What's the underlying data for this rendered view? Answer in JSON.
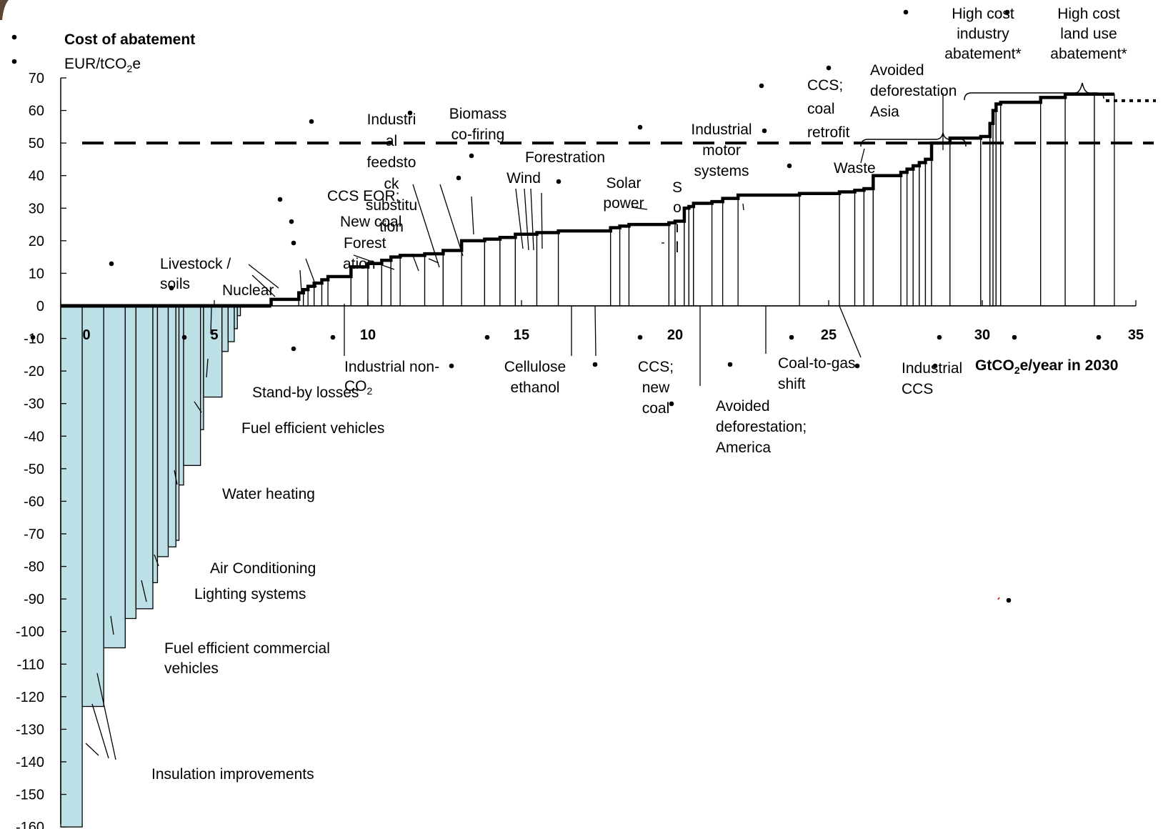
{
  "chart_data": {
    "type": "bar",
    "title": "Cost of abatement",
    "ylabel": "EUR/tCO2e",
    "ylabel_parts": {
      "main": "EUR/tCO",
      "sub": "2",
      "tail": "e"
    },
    "xlabel": "GtCO2e/year in 2030",
    "xlabel_parts": {
      "main": "GtCO",
      "sub": "2",
      "tail": "e/year in 2030"
    },
    "xlim": [
      0,
      35
    ],
    "ylim": [
      -160,
      70
    ],
    "x_ticks": [
      0,
      5,
      10,
      15,
      20,
      25,
      30,
      35
    ],
    "y_ticks": [
      70,
      60,
      50,
      40,
      30,
      20,
      10,
      0,
      -10,
      -20,
      -30,
      -40,
      -50,
      -60,
      -70,
      -80,
      -90,
      -100,
      -110,
      -120,
      -130,
      -140,
      -150,
      -160
    ],
    "threshold_line": 50,
    "extension_value": 63,
    "negative_bar_color": "#bde0e6",
    "bars": [
      {
        "w": 0.7,
        "y": -160
      },
      {
        "w": 0.7,
        "y": -123
      },
      {
        "w": 0.7,
        "y": -105
      },
      {
        "w": 0.35,
        "y": -96
      },
      {
        "w": 0.55,
        "y": -93
      },
      {
        "w": 0.15,
        "y": -85
      },
      {
        "w": 0.35,
        "y": -77
      },
      {
        "w": 0.25,
        "y": -74
      },
      {
        "w": 0.1,
        "y": -72
      },
      {
        "w": 0.15,
        "y": -55
      },
      {
        "w": 0.55,
        "y": -49
      },
      {
        "w": 0.1,
        "y": -38
      },
      {
        "w": 0.6,
        "y": -28
      },
      {
        "w": 0.2,
        "y": -14
      },
      {
        "w": 0.2,
        "y": -11
      },
      {
        "w": 0.1,
        "y": -7
      },
      {
        "w": 0.1,
        "y": -3
      },
      {
        "w": 0.6,
        "y": 0
      },
      {
        "w": 0.4,
        "y": 0
      },
      {
        "w": 0.9,
        "y": 2
      },
      {
        "w": 0.15,
        "y": 4
      },
      {
        "w": 0.15,
        "y": 5
      },
      {
        "w": 0.2,
        "y": 6
      },
      {
        "w": 0.25,
        "y": 7
      },
      {
        "w": 0.2,
        "y": 8
      },
      {
        "w": 0.75,
        "y": 9
      },
      {
        "w": 0.55,
        "y": 12
      },
      {
        "w": 0.45,
        "y": 13
      },
      {
        "w": 0.3,
        "y": 14
      },
      {
        "w": 0.3,
        "y": 15
      },
      {
        "w": 0.8,
        "y": 15.5
      },
      {
        "w": 0.6,
        "y": 16
      },
      {
        "w": 0.6,
        "y": 17
      },
      {
        "w": 0.75,
        "y": 20
      },
      {
        "w": 0.5,
        "y": 20.5
      },
      {
        "w": 0.5,
        "y": 21
      },
      {
        "w": 0.7,
        "y": 22
      },
      {
        "w": 0.7,
        "y": 22.5
      },
      {
        "w": 1.7,
        "y": 23
      },
      {
        "w": 0.3,
        "y": 24
      },
      {
        "w": 0.3,
        "y": 24.5
      },
      {
        "w": 1.3,
        "y": 25
      },
      {
        "w": 0.2,
        "y": 25.5
      },
      {
        "w": 0.3,
        "y": 26
      },
      {
        "w": 0.15,
        "y": 30
      },
      {
        "w": 0.15,
        "y": 30.5
      },
      {
        "w": 0.6,
        "y": 31.5
      },
      {
        "w": 0.35,
        "y": 32
      },
      {
        "w": 0.5,
        "y": 33
      },
      {
        "w": 2.0,
        "y": 34
      },
      {
        "w": 1.3,
        "y": 34.5
      },
      {
        "w": 0.5,
        "y": 35
      },
      {
        "w": 0.3,
        "y": 35.5
      },
      {
        "w": 0.3,
        "y": 36
      },
      {
        "w": 0.9,
        "y": 40
      },
      {
        "w": 0.2,
        "y": 41
      },
      {
        "w": 0.2,
        "y": 42
      },
      {
        "w": 0.2,
        "y": 43
      },
      {
        "w": 0.2,
        "y": 44
      },
      {
        "w": 0.2,
        "y": 45
      },
      {
        "w": 0.6,
        "y": 50
      },
      {
        "w": 1.0,
        "y": 51.5
      },
      {
        "w": 0.3,
        "y": 52
      },
      {
        "w": 0.1,
        "y": 56
      },
      {
        "w": 0.1,
        "y": 60
      },
      {
        "w": 0.15,
        "y": 62
      },
      {
        "w": 1.3,
        "y": 62.5
      },
      {
        "w": 0.8,
        "y": 64
      },
      {
        "w": 0.95,
        "y": 65
      },
      {
        "w": 0.65,
        "y": 65
      }
    ],
    "legend": "none"
  },
  "labels": [
    {
      "id": "insulation-improvements",
      "lines": [
        "Insulation improvements"
      ]
    },
    {
      "id": "fuel-efficient-commercial-vehicles",
      "lines": [
        "Fuel efficient commercial",
        "vehicles"
      ]
    },
    {
      "id": "lighting-systems",
      "lines": [
        "Lighting systems"
      ]
    },
    {
      "id": "air-conditioning",
      "lines": [
        "Air Conditioning"
      ]
    },
    {
      "id": "water-heating",
      "lines": [
        "Water heating"
      ]
    },
    {
      "id": "fuel-efficient-vehicles",
      "lines": [
        "Fuel efficient vehicles"
      ]
    },
    {
      "id": "stand-by-losses",
      "lines": [
        "Stand-by losses"
      ]
    },
    {
      "id": "livestock-soils",
      "lines": [
        "Livestock /",
        "soils"
      ]
    },
    {
      "id": "nuclear",
      "lines": [
        "Nuclear"
      ]
    },
    {
      "id": "ccs-eor",
      "lines": [
        "CCS EOR;"
      ]
    },
    {
      "id": "new-coal-1",
      "lines": [
        "New coal"
      ]
    },
    {
      "id": "forestation-1",
      "lines": [
        "Forest"
      ]
    },
    {
      "id": "forestation-1b",
      "lines": [
        "ation"
      ]
    },
    {
      "id": "industrial-feedstock",
      "lines": [
        "Industri",
        "al",
        "feedsto",
        "ck",
        "substitu",
        "tion"
      ]
    },
    {
      "id": "industrial-non-co2",
      "lines": [
        "Industrial non-"
      ]
    },
    {
      "id": "industrial-non-co2-b",
      "lines": [
        "CO"
      ]
    },
    {
      "id": "biomass-co-firing",
      "lines": [
        "Biomass",
        "co-firing"
      ]
    },
    {
      "id": "forestation-2",
      "lines": [
        "Forestration"
      ]
    },
    {
      "id": "wind",
      "lines": [
        "Wind"
      ]
    },
    {
      "id": "cellulose-ethanol",
      "lines": [
        "Cellulose",
        "ethanol"
      ]
    },
    {
      "id": "solar-power",
      "lines": [
        "Solar",
        "power"
      ]
    },
    {
      "id": "soil",
      "lines": [
        "S",
        "o",
        "i",
        "l"
      ]
    },
    {
      "id": "ccs-new-coal",
      "lines": [
        "CCS;",
        "new",
        "coal"
      ]
    },
    {
      "id": "industrial-motor-systems",
      "lines": [
        "Industrial",
        "motor",
        "systems"
      ]
    },
    {
      "id": "avoided-deforestation-america",
      "lines": [
        "Avoided",
        "deforestation;",
        "America"
      ]
    },
    {
      "id": "coal-to-gas-shift",
      "lines": [
        "Coal-to-gas",
        "shift"
      ]
    },
    {
      "id": "ccs-coal-retrofit",
      "lines": [
        "CCS;",
        "coal",
        "retrofit"
      ]
    },
    {
      "id": "waste",
      "lines": [
        "Waste"
      ]
    },
    {
      "id": "avoided-deforestation-asia",
      "lines": [
        "Avoided",
        "deforestation",
        "Asia"
      ]
    },
    {
      "id": "industrial-ccs",
      "lines": [
        "Industrial",
        "CCS"
      ]
    },
    {
      "id": "high-cost-industry",
      "lines": [
        "High cost",
        "industry",
        "abatement*"
      ]
    },
    {
      "id": "high-cost-land-use",
      "lines": [
        "High cost",
        "land use",
        "abatement*"
      ]
    }
  ]
}
